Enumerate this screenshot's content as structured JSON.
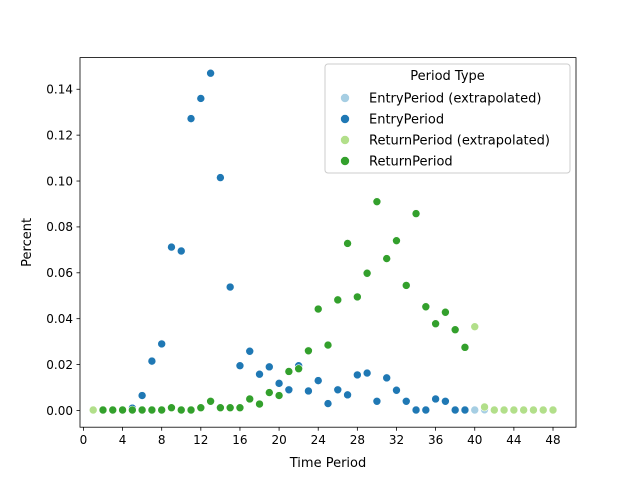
{
  "chart_data": {
    "type": "scatter",
    "xlabel": "Time Period",
    "ylabel": "Percent",
    "xlim": [
      -0.35,
      50.35
    ],
    "ylim": [
      -0.0073,
      0.1538
    ],
    "xticks": [
      "0",
      "4",
      "8",
      "12",
      "16",
      "20",
      "24",
      "28",
      "32",
      "36",
      "40",
      "44",
      "48"
    ],
    "xtick_values": [
      0,
      4,
      8,
      12,
      16,
      20,
      24,
      28,
      32,
      36,
      40,
      44,
      48
    ],
    "yticks": [
      "0.00",
      "0.02",
      "0.04",
      "0.06",
      "0.08",
      "0.10",
      "0.12",
      "0.14"
    ],
    "ytick_values": [
      0,
      0.02,
      0.04,
      0.06,
      0.08,
      0.1,
      0.12,
      0.14
    ],
    "grid": false,
    "legend": {
      "title": "Period Type",
      "position": "top-right"
    },
    "series": [
      {
        "name": "EntryPeriod (extrapolated)",
        "color": "#a6cee3",
        "points": [
          [
            40,
            0.0002
          ],
          [
            41,
            0.0003
          ]
        ]
      },
      {
        "name": "EntryPeriod",
        "color": "#1f78b4",
        "points": [
          [
            5,
            0.001
          ],
          [
            6,
            0.0065
          ],
          [
            7,
            0.0215
          ],
          [
            8,
            0.029
          ],
          [
            9,
            0.0712
          ],
          [
            10,
            0.0695
          ],
          [
            11,
            0.1272
          ],
          [
            12,
            0.136
          ],
          [
            13,
            0.147
          ],
          [
            14,
            0.1015
          ],
          [
            15,
            0.0538
          ],
          [
            16,
            0.0195
          ],
          [
            17,
            0.0258
          ],
          [
            18,
            0.0158
          ],
          [
            19,
            0.019
          ],
          [
            20,
            0.0118
          ],
          [
            21,
            0.009
          ],
          [
            22,
            0.0195
          ],
          [
            23,
            0.0085
          ],
          [
            24,
            0.013
          ],
          [
            25,
            0.003
          ],
          [
            26,
            0.009
          ],
          [
            27,
            0.0068
          ],
          [
            28,
            0.0155
          ],
          [
            29,
            0.0163
          ],
          [
            30,
            0.004
          ],
          [
            31,
            0.0142
          ],
          [
            32,
            0.0088
          ],
          [
            33,
            0.004
          ],
          [
            34,
            0.0002
          ],
          [
            35,
            0.0002
          ],
          [
            36,
            0.005
          ],
          [
            37,
            0.004
          ],
          [
            38,
            0.0002
          ],
          [
            39,
            0.0002
          ]
        ]
      },
      {
        "name": "ReturnPeriod (extrapolated)",
        "color": "#b2df8a",
        "points": [
          [
            1,
            0.0002
          ],
          [
            40,
            0.0365
          ],
          [
            41,
            0.0015
          ],
          [
            42,
            0.0002
          ],
          [
            43,
            0.0002
          ],
          [
            44,
            0.0002
          ],
          [
            45,
            0.0002
          ],
          [
            46,
            0.0002
          ],
          [
            47,
            0.0002
          ],
          [
            48,
            0.0002
          ]
        ]
      },
      {
        "name": "ReturnPeriod",
        "color": "#33a02c",
        "points": [
          [
            2,
            0.0002
          ],
          [
            3,
            0.0002
          ],
          [
            4,
            0.0002
          ],
          [
            5,
            0.0002
          ],
          [
            6,
            0.0002
          ],
          [
            7,
            0.0002
          ],
          [
            8,
            0.0002
          ],
          [
            9,
            0.0012
          ],
          [
            10,
            0.0002
          ],
          [
            11,
            0.0002
          ],
          [
            12,
            0.0012
          ],
          [
            13,
            0.004
          ],
          [
            14,
            0.0012
          ],
          [
            15,
            0.0012
          ],
          [
            16,
            0.0012
          ],
          [
            17,
            0.005
          ],
          [
            18,
            0.0028
          ],
          [
            19,
            0.0078
          ],
          [
            20,
            0.0065
          ],
          [
            21,
            0.017
          ],
          [
            22,
            0.0182
          ],
          [
            23,
            0.026
          ],
          [
            24,
            0.0442
          ],
          [
            25,
            0.0285
          ],
          [
            26,
            0.0482
          ],
          [
            27,
            0.0728
          ],
          [
            28,
            0.0495
          ],
          [
            29,
            0.0598
          ],
          [
            30,
            0.091
          ],
          [
            31,
            0.0662
          ],
          [
            32,
            0.074
          ],
          [
            33,
            0.0545
          ],
          [
            34,
            0.0858
          ],
          [
            35,
            0.0452
          ],
          [
            36,
            0.0378
          ],
          [
            37,
            0.0428
          ],
          [
            38,
            0.0352
          ],
          [
            39,
            0.0275
          ]
        ]
      }
    ]
  }
}
